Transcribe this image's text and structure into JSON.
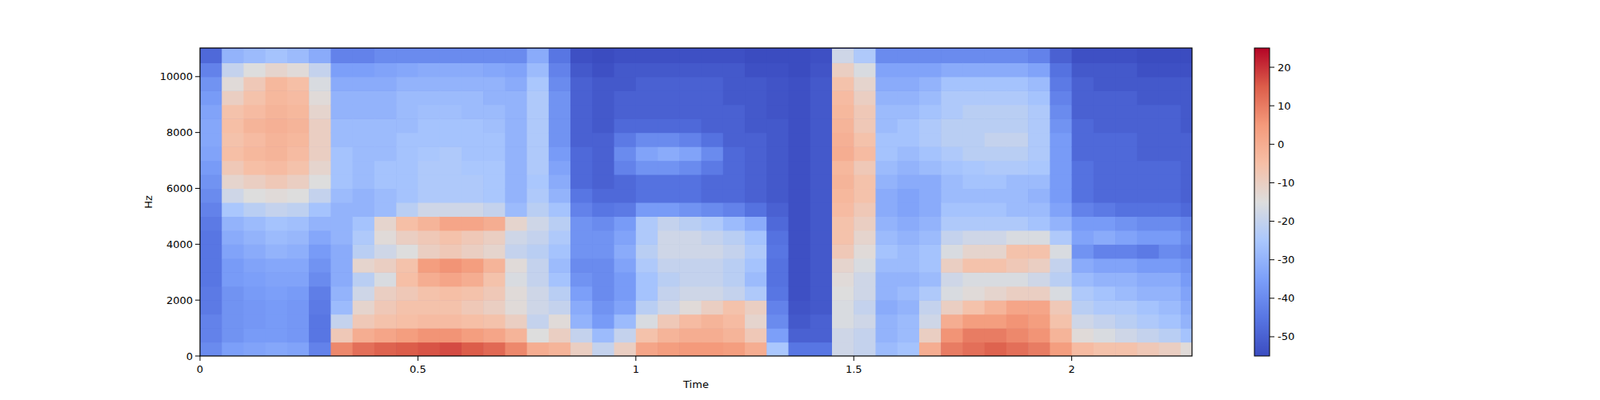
{
  "chart_data": {
    "type": "heatmap",
    "x_label": "Time",
    "y_label": "Hz",
    "xlim": [
      0,
      2.276
    ],
    "ylim": [
      0,
      11025
    ],
    "xticks": [
      0,
      0.5,
      1,
      1.5,
      2
    ],
    "yticks": [
      0,
      2000,
      4000,
      6000,
      8000,
      10000
    ],
    "colorbar_range": [
      -55,
      25
    ],
    "colorbar_ticks": [
      -50,
      -40,
      -30,
      -20,
      -10,
      0,
      10,
      20
    ],
    "x": [
      0.025,
      0.075,
      0.125,
      0.175,
      0.225,
      0.275,
      0.325,
      0.375,
      0.425,
      0.475,
      0.525,
      0.575,
      0.625,
      0.675,
      0.725,
      0.775,
      0.825,
      0.875,
      0.925,
      0.975,
      1.025,
      1.075,
      1.125,
      1.175,
      1.225,
      1.275,
      1.325,
      1.375,
      1.425,
      1.475,
      1.525,
      1.575,
      1.625,
      1.675,
      1.725,
      1.775,
      1.825,
      1.875,
      1.925,
      1.975,
      2.025,
      2.075,
      2.125,
      2.175,
      2.225,
      2.275
    ],
    "y": [
      250,
      750,
      1250,
      1750,
      2250,
      2750,
      3250,
      3750,
      4250,
      4750,
      5250,
      5750,
      6250,
      6750,
      7250,
      7750,
      8250,
      8750,
      9250,
      9750,
      10250,
      10750
    ],
    "values": [
      [
        -40,
        -42,
        -42,
        -44,
        -44,
        -45,
        -45,
        -45,
        -45,
        -44,
        -42,
        -40,
        -38,
        -36,
        -34,
        -33,
        -33,
        -34,
        -36,
        -38,
        -42,
        -48
      ],
      [
        -35,
        -38,
        -38,
        -38,
        -38,
        -36,
        -36,
        -34,
        -32,
        -30,
        -25,
        -18,
        -12,
        -8,
        -5,
        -6,
        -5,
        -6,
        -10,
        -14,
        -20,
        -30
      ],
      [
        -34,
        -36,
        -37,
        -37,
        -36,
        -35,
        -34,
        -32,
        -30,
        -28,
        -22,
        -15,
        -10,
        -5,
        -3,
        -4,
        -2,
        -4,
        -6,
        -8,
        -15,
        -28
      ],
      [
        -33,
        -36,
        -36,
        -36,
        -35,
        -34,
        -33,
        -30,
        -28,
        -26,
        -20,
        -14,
        -8,
        -4,
        -2,
        -2,
        -1,
        -2,
        -3,
        -3,
        -12,
        -26
      ],
      [
        -34,
        -37,
        -37,
        -37,
        -36,
        -34,
        -33,
        -31,
        -29,
        -27,
        -21,
        -15,
        -10,
        -6,
        -4,
        -3,
        -2,
        -3,
        -4,
        -5,
        -14,
        -28
      ],
      [
        -42,
        -45,
        -45,
        -44,
        -43,
        -40,
        -38,
        -36,
        -33,
        -30,
        -26,
        -20,
        -15,
        -12,
        -10,
        -10,
        -10,
        -12,
        -14,
        -16,
        -20,
        -32
      ],
      [
        8,
        -8,
        -20,
        -28,
        -30,
        -32,
        -32,
        -32,
        -30,
        -30,
        -30,
        -28,
        -26,
        -26,
        -26,
        -28,
        -28,
        -30,
        -30,
        -32,
        -35,
        -42
      ],
      [
        12,
        0,
        -8,
        -12,
        -18,
        -22,
        -12,
        -22,
        -24,
        -26,
        -30,
        -30,
        -28,
        -28,
        -28,
        -28,
        -28,
        -30,
        -30,
        -32,
        -35,
        -42
      ],
      [
        14,
        2,
        -6,
        -8,
        -10,
        -16,
        -10,
        -18,
        -14,
        -12,
        -28,
        -28,
        -26,
        -26,
        -28,
        -28,
        -28,
        -30,
        -30,
        -32,
        -34,
        -40
      ],
      [
        15,
        4,
        -5,
        -6,
        -8,
        -5,
        -6,
        -15,
        -10,
        -5,
        -22,
        -26,
        -26,
        -26,
        -26,
        -26,
        -28,
        -28,
        -28,
        -30,
        -33,
        -40
      ],
      [
        16,
        6,
        -4,
        -6,
        -6,
        0,
        4,
        -10,
        -8,
        -2,
        -18,
        -24,
        -24,
        -24,
        -25,
        -26,
        -26,
        -27,
        -28,
        -30,
        -32,
        -40
      ],
      [
        17,
        6,
        -4,
        -6,
        -5,
        2,
        6,
        -8,
        -6,
        2,
        -18,
        -24,
        -24,
        -24,
        -24,
        -26,
        -26,
        -27,
        -28,
        -30,
        -32,
        -40
      ],
      [
        15,
        4,
        -5,
        -8,
        -6,
        0,
        4,
        -10,
        -8,
        2,
        -18,
        -24,
        -24,
        -25,
        -26,
        -26,
        -26,
        -28,
        -28,
        -30,
        -32,
        -40
      ],
      [
        13,
        2,
        -6,
        -10,
        -8,
        -6,
        -2,
        -12,
        -10,
        0,
        -20,
        -25,
        -25,
        -25,
        -26,
        -26,
        -27,
        -28,
        -30,
        -30,
        -33,
        -40
      ],
      [
        8,
        -2,
        -10,
        -14,
        -14,
        -16,
        -14,
        -20,
        -18,
        -12,
        -28,
        -30,
        -30,
        -30,
        -30,
        -30,
        -30,
        -30,
        -30,
        -32,
        -34,
        -40
      ],
      [
        0,
        -15,
        -20,
        -18,
        -18,
        -20,
        -20,
        -22,
        -20,
        -18,
        -22,
        -24,
        -25,
        -24,
        -24,
        -24,
        -24,
        -24,
        -24,
        -25,
        -28,
        -32
      ],
      [
        -2,
        -10,
        -14,
        -20,
        -22,
        -26,
        -28,
        -26,
        -24,
        -22,
        -26,
        -30,
        -32,
        -34,
        -36,
        -38,
        -38,
        -38,
        -38,
        -40,
        -42,
        -45
      ],
      [
        -10,
        -20,
        -30,
        -32,
        -35,
        -38,
        -40,
        -38,
        -38,
        -38,
        -42,
        -45,
        -48,
        -48,
        -48,
        -50,
        -50,
        -50,
        -50,
        -50,
        -52,
        -54
      ],
      [
        -20,
        -28,
        -36,
        -38,
        -40,
        -40,
        -40,
        -38,
        -38,
        -40,
        -45,
        -48,
        -50,
        -50,
        -50,
        -50,
        -52,
        -52,
        -52,
        -52,
        -54,
        -55
      ],
      [
        -10,
        -20,
        -28,
        -34,
        -36,
        -36,
        -34,
        -32,
        -34,
        -36,
        -44,
        -48,
        -48,
        -42,
        -40,
        -44,
        -48,
        -50,
        -50,
        -52,
        -52,
        -54
      ],
      [
        2,
        -6,
        -16,
        -22,
        -26,
        -26,
        -24,
        -22,
        -24,
        -24,
        -36,
        -46,
        -46,
        -38,
        -34,
        -40,
        -48,
        -50,
        -50,
        -50,
        -52,
        -54
      ],
      [
        4,
        -2,
        -8,
        -18,
        -20,
        -22,
        -20,
        -18,
        -18,
        -20,
        -36,
        -46,
        -46,
        -38,
        -32,
        -40,
        -48,
        -50,
        -50,
        -50,
        -52,
        -54
      ],
      [
        5,
        0,
        -4,
        -14,
        -18,
        -20,
        -20,
        -18,
        -18,
        -22,
        -38,
        -46,
        -46,
        -40,
        -34,
        -42,
        -48,
        -50,
        -50,
        -50,
        -52,
        -54
      ],
      [
        5,
        0,
        -2,
        -10,
        -18,
        -20,
        -20,
        -18,
        -20,
        -24,
        -40,
        -48,
        -48,
        -44,
        -40,
        -46,
        -50,
        -50,
        -50,
        -50,
        -52,
        -54
      ],
      [
        4,
        -2,
        -4,
        -6,
        -20,
        -22,
        -22,
        -20,
        -22,
        -28,
        -42,
        -48,
        -48,
        -48,
        -48,
        -50,
        -50,
        -50,
        -52,
        -52,
        -52,
        -54
      ],
      [
        0,
        -8,
        -12,
        -10,
        -24,
        -28,
        -26,
        -24,
        -26,
        -32,
        -46,
        -50,
        -50,
        -50,
        -50,
        -50,
        -52,
        -52,
        -52,
        -52,
        -54,
        -55
      ],
      [
        -25,
        -35,
        -40,
        -42,
        -45,
        -46,
        -46,
        -45,
        -46,
        -48,
        -50,
        -52,
        -52,
        -52,
        -52,
        -52,
        -52,
        -53,
        -53,
        -53,
        -54,
        -55
      ],
      [
        -45,
        -50,
        -52,
        -53,
        -54,
        -54,
        -54,
        -54,
        -54,
        -54,
        -54,
        -54,
        -54,
        -54,
        -54,
        -54,
        -54,
        -54,
        -54,
        -54,
        -55,
        -55
      ],
      [
        -45,
        -50,
        -50,
        -52,
        -52,
        -52,
        -52,
        -52,
        -52,
        -52,
        -52,
        -52,
        -52,
        -52,
        -52,
        -52,
        -52,
        -52,
        -52,
        -52,
        -53,
        -54
      ],
      [
        -18,
        -18,
        -16,
        -16,
        -15,
        -14,
        -12,
        -8,
        -6,
        -6,
        -4,
        -3,
        -2,
        -3,
        0,
        -1,
        -2,
        -3,
        -4,
        -6,
        -10,
        -18
      ],
      [
        -20,
        -20,
        -18,
        -20,
        -18,
        -18,
        -16,
        -14,
        -12,
        -10,
        -8,
        -6,
        -6,
        -8,
        -4,
        -6,
        -8,
        -8,
        -10,
        -12,
        -16,
        -24
      ],
      [
        -28,
        -30,
        -30,
        -32,
        -30,
        -30,
        -28,
        -26,
        -28,
        -30,
        -32,
        -32,
        -30,
        -28,
        -26,
        -26,
        -28,
        -28,
        -30,
        -32,
        -34,
        -40
      ],
      [
        -26,
        -28,
        -28,
        -30,
        -28,
        -30,
        -28,
        -28,
        -30,
        -32,
        -34,
        -34,
        -32,
        -30,
        -28,
        -26,
        -26,
        -28,
        -30,
        -32,
        -34,
        -40
      ],
      [
        0,
        -10,
        -18,
        -20,
        -24,
        -28,
        -26,
        -26,
        -28,
        -30,
        -32,
        -32,
        -32,
        -28,
        -26,
        -24,
        -24,
        -26,
        -28,
        -30,
        -34,
        -40
      ],
      [
        10,
        6,
        0,
        -10,
        -16,
        -18,
        -10,
        -16,
        -20,
        -24,
        -26,
        -28,
        -28,
        -26,
        -24,
        -22,
        -22,
        -24,
        -24,
        -26,
        -32,
        -40
      ],
      [
        12,
        10,
        4,
        -6,
        -14,
        -16,
        -6,
        -12,
        -18,
        -24,
        -26,
        -28,
        -26,
        -25,
        -22,
        -22,
        -22,
        -22,
        -24,
        -26,
        -32,
        -40
      ],
      [
        14,
        10,
        4,
        -2,
        -12,
        -16,
        -6,
        -12,
        -18,
        -24,
        -26,
        -28,
        -26,
        -24,
        -22,
        -20,
        -22,
        -22,
        -24,
        -26,
        -32,
        -40
      ],
      [
        12,
        8,
        6,
        2,
        -10,
        -16,
        -8,
        -6,
        -16,
        -24,
        -28,
        -28,
        -28,
        -24,
        -22,
        -20,
        -22,
        -22,
        -24,
        -26,
        -32,
        -40
      ],
      [
        10,
        6,
        4,
        2,
        -10,
        -18,
        -10,
        -6,
        -16,
        -26,
        -28,
        -30,
        -28,
        -25,
        -24,
        -24,
        -24,
        -24,
        -26,
        -28,
        -34,
        -42
      ],
      [
        4,
        -2,
        -6,
        -8,
        -16,
        -22,
        -20,
        -16,
        -24,
        -30,
        -34,
        -36,
        -36,
        -36,
        -36,
        -36,
        -38,
        -40,
        -42,
        -44,
        -46,
        -50
      ],
      [
        -4,
        -14,
        -18,
        -22,
        -24,
        -28,
        -32,
        -38,
        -34,
        -36,
        -42,
        -46,
        -46,
        -46,
        -48,
        -48,
        -48,
        -50,
        -50,
        -50,
        -52,
        -54
      ],
      [
        -6,
        -16,
        -20,
        -24,
        -26,
        -30,
        -34,
        -42,
        -32,
        -36,
        -44,
        -48,
        -48,
        -48,
        -48,
        -48,
        -50,
        -50,
        -50,
        -52,
        -52,
        -54
      ],
      [
        -6,
        -18,
        -22,
        -24,
        -28,
        -30,
        -34,
        -42,
        -34,
        -38,
        -46,
        -48,
        -48,
        -48,
        -48,
        -48,
        -50,
        -50,
        -50,
        -52,
        -52,
        -54
      ],
      [
        -8,
        -20,
        -24,
        -26,
        -30,
        -32,
        -36,
        -44,
        -36,
        -40,
        -46,
        -48,
        -48,
        -48,
        -50,
        -50,
        -50,
        -50,
        -52,
        -52,
        -54,
        -55
      ],
      [
        -10,
        -22,
        -26,
        -28,
        -30,
        -32,
        -36,
        -40,
        -36,
        -40,
        -46,
        -48,
        -48,
        -48,
        -50,
        -50,
        -50,
        -50,
        -52,
        -52,
        -54,
        -55
      ],
      [
        -14,
        -26,
        -30,
        -32,
        -34,
        -36,
        -38,
        -42,
        -40,
        -42,
        -48,
        -50,
        -50,
        -50,
        -50,
        -50,
        -52,
        -52,
        -52,
        -52,
        -54,
        -55
      ]
    ]
  }
}
